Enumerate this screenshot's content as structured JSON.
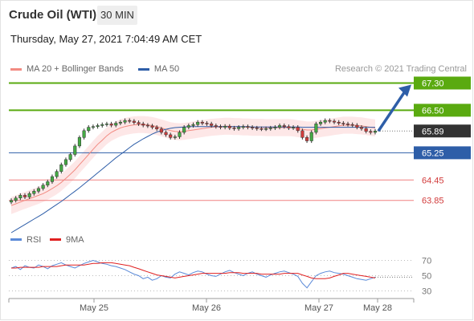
{
  "header": {
    "instrument": "Crude Oil (WTI)",
    "timeframe": "30 MIN",
    "datetime": "Thursday, May 27, 2021 7:04:49 AM CET"
  },
  "legend": {
    "bollinger": {
      "label": "MA 20 + Bollinger Bands",
      "color": "#f28b82"
    },
    "ma50": {
      "label": "MA 50",
      "color": "#2e5ea8"
    },
    "rsi": {
      "label": "RSI",
      "color": "#5b8ad8"
    },
    "rsi_ma": {
      "label": "9MA",
      "color": "#e02020"
    }
  },
  "credit": "Research © 2021 Trading Central",
  "colors": {
    "up_candle": "#44aa44",
    "down_candle": "#d23c3c",
    "resistance": "#5aaa10",
    "support": "#2e5ea8",
    "support_weak": "#f08080",
    "current": "#333333",
    "arrow": "#2e5ea8"
  },
  "chart_data": [
    {
      "type": "line",
      "panel": "price",
      "ylim": [
        62.9,
        67.5
      ],
      "x_tick_labels": [
        "May 25",
        "May 26",
        "May 27",
        "May 28"
      ],
      "levels": [
        {
          "value": "67.30",
          "kind": "resistance"
        },
        {
          "value": "66.50",
          "kind": "resistance"
        },
        {
          "value": "65.89",
          "kind": "current"
        },
        {
          "value": "65.25",
          "kind": "support"
        },
        {
          "value": "64.45",
          "kind": "support_weak"
        },
        {
          "value": "63.85",
          "kind": "support_weak"
        }
      ],
      "close": [
        63.85,
        63.92,
        64.0,
        63.95,
        64.05,
        64.12,
        64.2,
        64.3,
        64.4,
        64.55,
        64.7,
        64.9,
        65.05,
        65.2,
        65.45,
        65.7,
        65.9,
        66.0,
        66.02,
        66.05,
        66.08,
        66.1,
        66.06,
        66.12,
        66.15,
        66.2,
        66.18,
        66.14,
        66.1,
        66.06,
        66.04,
        66.0,
        65.95,
        65.85,
        65.78,
        65.7,
        65.72,
        65.85,
        66.0,
        66.05,
        66.08,
        66.15,
        66.12,
        66.1,
        66.05,
        66.02,
        66.0,
        66.03,
        65.98,
        65.96,
        66.0,
        66.02,
        66.0,
        65.98,
        65.96,
        65.95,
        65.96,
        65.98,
        66.0,
        66.05,
        66.02,
        65.98,
        66.0,
        65.9,
        65.7,
        65.6,
        65.85,
        66.1,
        66.15,
        66.2,
        66.18,
        66.15,
        66.12,
        66.1,
        66.08,
        66.06,
        66.0,
        65.96,
        65.88,
        65.85,
        65.89
      ],
      "ma20": [
        63.7,
        63.75,
        63.8,
        63.85,
        63.9,
        63.95,
        64.0,
        64.05,
        64.12,
        64.2,
        64.28,
        64.38,
        64.5,
        64.62,
        64.75,
        64.9,
        65.05,
        65.2,
        65.35,
        65.5,
        65.62,
        65.75,
        65.85,
        65.92,
        65.98,
        66.02,
        66.05,
        66.07,
        66.08,
        66.08,
        66.07,
        66.05,
        66.02,
        65.98,
        65.94,
        65.9,
        65.88,
        65.87,
        65.88,
        65.9,
        65.92,
        65.94,
        65.96,
        65.98,
        66.0,
        66.01,
        66.02,
        66.03,
        66.03,
        66.02,
        66.02,
        66.01,
        66.01,
        66.0,
        66.0,
        66.0,
        65.99,
        65.99,
        65.99,
        65.99,
        65.99,
        65.99,
        65.98,
        65.96,
        65.94,
        65.92,
        65.92,
        65.94,
        65.96,
        65.98,
        66.0,
        66.02,
        66.04,
        66.06,
        66.06,
        66.06,
        66.05,
        66.04,
        66.02,
        66.0,
        65.98
      ],
      "ma50": [
        62.9,
        62.98,
        63.06,
        63.14,
        63.22,
        63.3,
        63.38,
        63.46,
        63.55,
        63.64,
        63.73,
        63.82,
        63.92,
        64.02,
        64.12,
        64.22,
        64.33,
        64.44,
        64.55,
        64.66,
        64.77,
        64.88,
        64.99,
        65.1,
        65.2,
        65.3,
        65.4,
        65.5,
        65.58,
        65.66,
        65.73,
        65.8,
        65.86,
        65.9,
        65.94,
        65.97,
        65.99,
        66.0,
        66.01,
        66.02,
        66.02,
        66.02,
        66.02,
        66.02,
        66.02,
        66.02,
        66.02,
        66.02,
        66.02,
        66.02,
        66.02,
        66.02,
        66.02,
        66.01,
        66.01,
        66.01,
        66.01,
        66.01,
        66.01,
        66.01,
        66.01,
        66.01,
        66.01,
        66.01,
        66.0,
        66.0,
        66.0,
        66.0,
        66.0,
        66.0,
        66.0,
        66.0,
        66.0,
        66.0,
        66.0,
        66.0,
        66.0,
        66.0,
        66.0,
        66.0,
        66.0
      ],
      "forecast_target": "67.30"
    },
    {
      "type": "line",
      "panel": "oscillator",
      "ylim": [
        20,
        80
      ],
      "y_tick_labels": [
        "70",
        "50",
        "30"
      ],
      "rsi": [
        60,
        62,
        58,
        63,
        61,
        60,
        64,
        62,
        59,
        63,
        65,
        67,
        64,
        62,
        60,
        63,
        66,
        68,
        70,
        68,
        66,
        65,
        63,
        62,
        60,
        58,
        55,
        52,
        50,
        46,
        48,
        44,
        46,
        50,
        48,
        47,
        52,
        55,
        53,
        51,
        54,
        56,
        55,
        52,
        50,
        49,
        52,
        55,
        57,
        54,
        52,
        50,
        53,
        55,
        52,
        50,
        48,
        51,
        53,
        55,
        56,
        54,
        52,
        49,
        40,
        34,
        42,
        50,
        53,
        55,
        56,
        54,
        53,
        52,
        50,
        48,
        46,
        45,
        44,
        46,
        48
      ],
      "rsi_ma": [
        60,
        60,
        61,
        61,
        61,
        61,
        61,
        62,
        62,
        62,
        62,
        63,
        64,
        64,
        64,
        64,
        64,
        65,
        66,
        66,
        67,
        67,
        67,
        66,
        65,
        64,
        63,
        61,
        59,
        57,
        55,
        53,
        51,
        50,
        49,
        48,
        47,
        48,
        49,
        50,
        51,
        52,
        53,
        53,
        53,
        53,
        53,
        53,
        54,
        54,
        54,
        53,
        53,
        53,
        53,
        52,
        52,
        52,
        52,
        52,
        53,
        53,
        53,
        53,
        51,
        49,
        47,
        46,
        46,
        46,
        47,
        49,
        51,
        53,
        53,
        52,
        51,
        50,
        49,
        48,
        47
      ]
    }
  ]
}
